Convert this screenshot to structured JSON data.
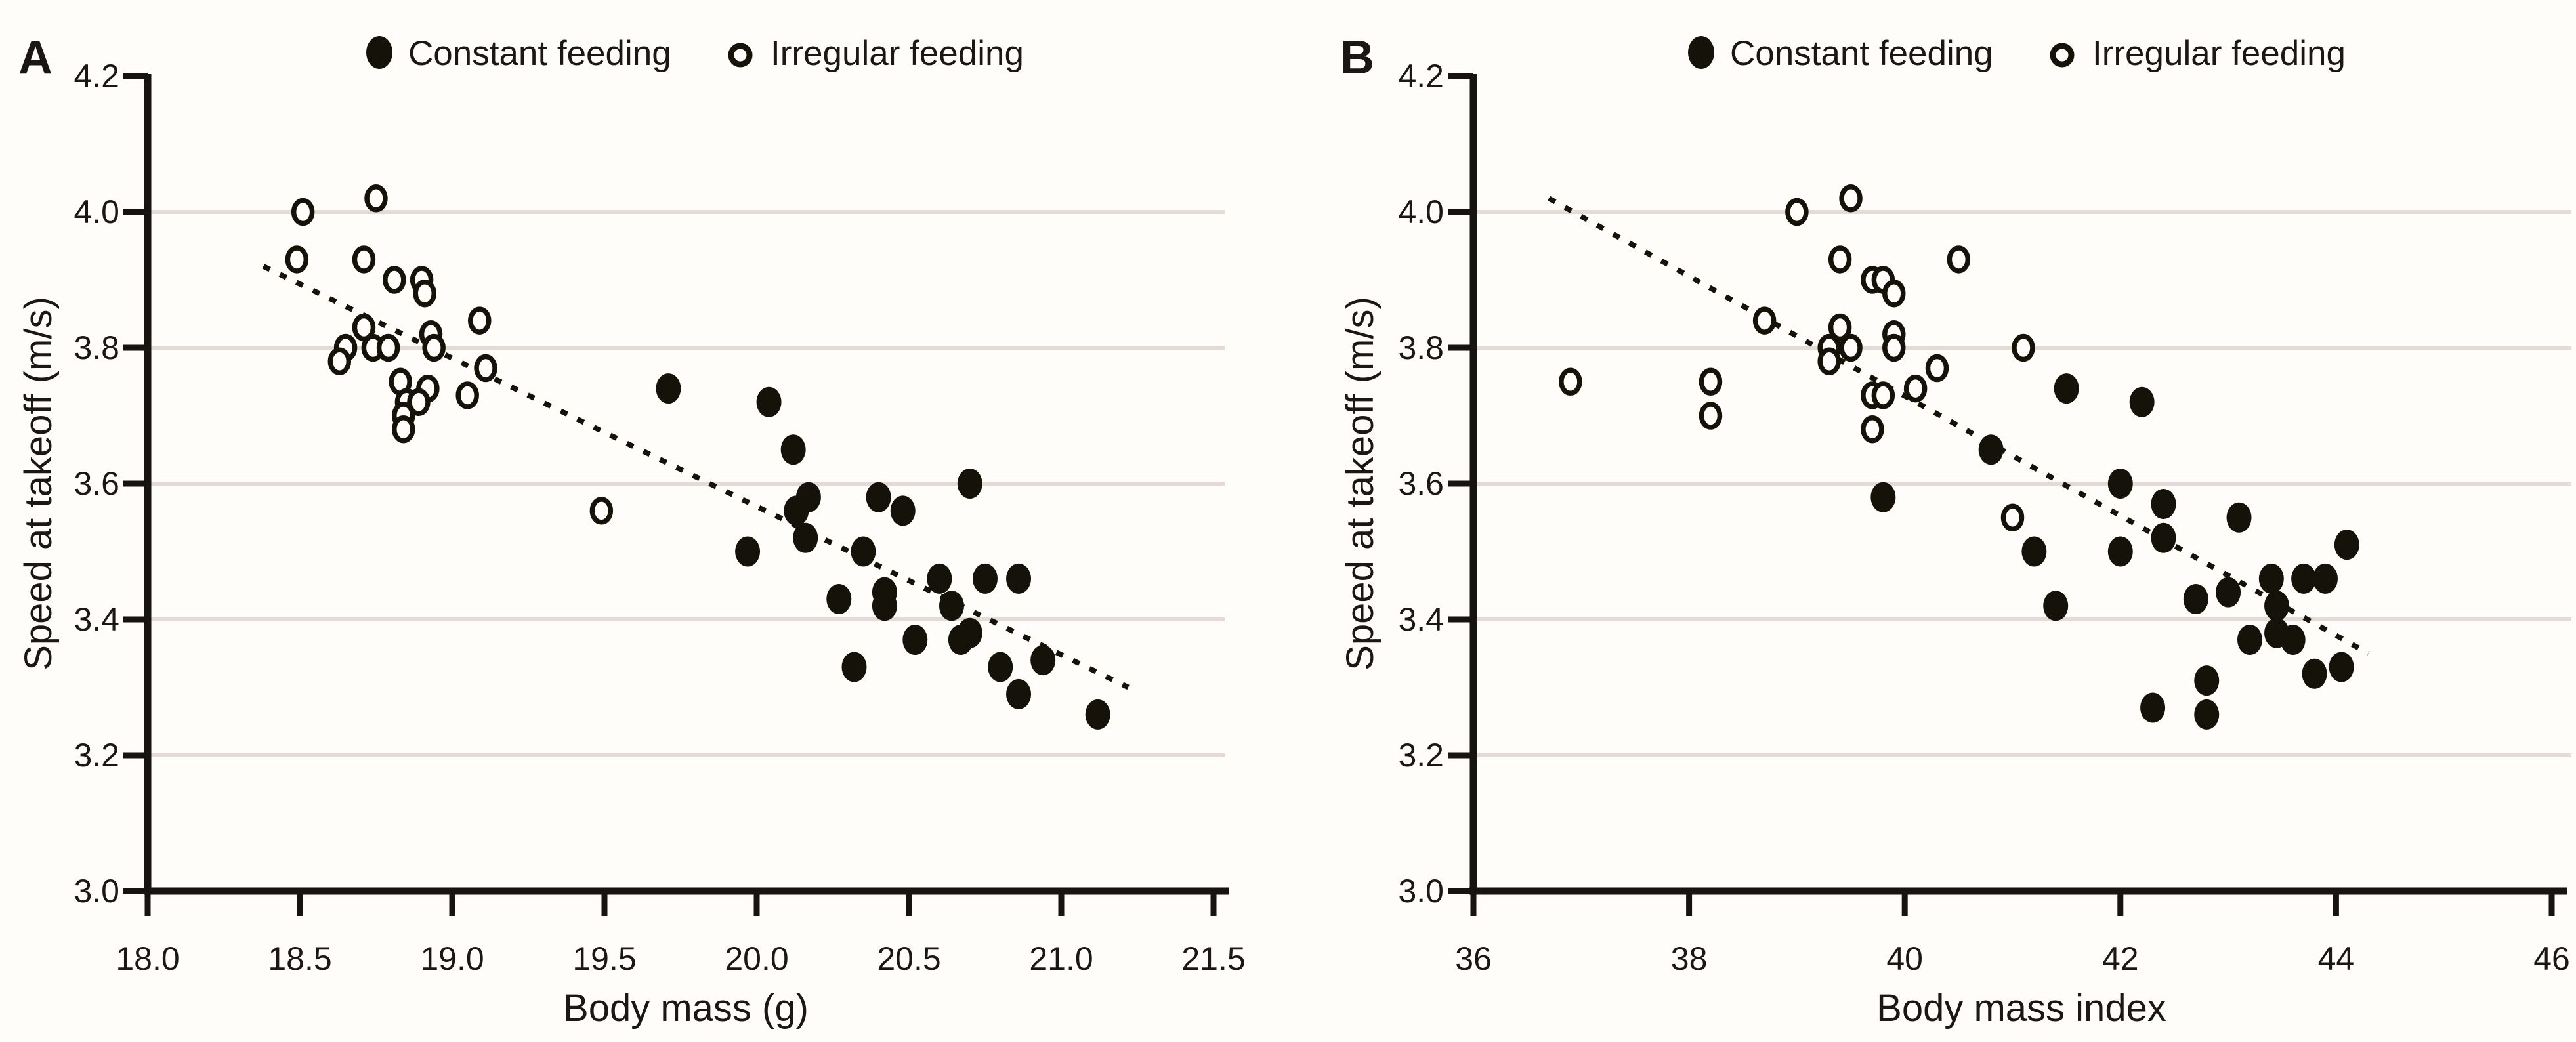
{
  "figure": {
    "background": "#fffdf9",
    "grid_color": "#e5dbd6",
    "axis_color": "#161310",
    "marker_color": "#151209",
    "text_color": "#1a1714"
  },
  "chart_data": [
    {
      "type": "scatter",
      "panel_label": "A",
      "xlabel": "Body mass (g)",
      "ylabel": "Speed at takeoff (m/s)",
      "xlim": [
        18.0,
        21.5
      ],
      "ylim": [
        3.0,
        4.2
      ],
      "x_ticks": [
        18.0,
        18.5,
        19.0,
        19.5,
        20.0,
        20.5,
        21.0,
        21.5
      ],
      "x_tick_labels": [
        "18.0",
        "18.5",
        "19.0",
        "19.5",
        "20.0",
        "20.5",
        "21.0",
        "21.5"
      ],
      "y_ticks": [
        3.0,
        3.2,
        3.4,
        3.6,
        3.8,
        4.0,
        4.2
      ],
      "y_tick_labels": [
        "3.0",
        "3.2",
        "3.4",
        "3.6",
        "3.8",
        "4.0",
        "4.2"
      ],
      "gridline_values": [
        3.2,
        3.4,
        3.6,
        3.8,
        4.0
      ],
      "grid": "horizontal",
      "legend_position": "top",
      "legend": [
        "Constant feeding",
        "Irregular feeding"
      ],
      "trend": {
        "style": "dotted",
        "from": [
          18.38,
          3.92
        ],
        "to": [
          21.22,
          3.3
        ]
      },
      "series": [
        {
          "name": "Constant feeding",
          "marker": "filled-circle",
          "points": [
            [
              19.71,
              3.74
            ],
            [
              20.04,
              3.72
            ],
            [
              20.12,
              3.65
            ],
            [
              20.7,
              3.6
            ],
            [
              20.4,
              3.58
            ],
            [
              20.17,
              3.58
            ],
            [
              20.13,
              3.56
            ],
            [
              20.48,
              3.56
            ],
            [
              20.16,
              3.52
            ],
            [
              19.97,
              3.5
            ],
            [
              20.35,
              3.5
            ],
            [
              20.6,
              3.46
            ],
            [
              20.75,
              3.46
            ],
            [
              20.86,
              3.46
            ],
            [
              20.42,
              3.44
            ],
            [
              20.27,
              3.43
            ],
            [
              20.42,
              3.42
            ],
            [
              20.64,
              3.42
            ],
            [
              20.7,
              3.38
            ],
            [
              20.67,
              3.37
            ],
            [
              20.52,
              3.37
            ],
            [
              20.94,
              3.34
            ],
            [
              20.32,
              3.33
            ],
            [
              20.8,
              3.33
            ],
            [
              20.86,
              3.29
            ],
            [
              21.12,
              3.26
            ]
          ]
        },
        {
          "name": "Irregular feeding",
          "marker": "open-circle",
          "points": [
            [
              18.51,
              4.0
            ],
            [
              18.75,
              4.02
            ],
            [
              18.49,
              3.93
            ],
            [
              18.71,
              3.93
            ],
            [
              18.81,
              3.9
            ],
            [
              18.9,
              3.9
            ],
            [
              18.91,
              3.88
            ],
            [
              19.09,
              3.84
            ],
            [
              18.71,
              3.83
            ],
            [
              18.93,
              3.82
            ],
            [
              18.94,
              3.8
            ],
            [
              18.65,
              3.8
            ],
            [
              18.74,
              3.8
            ],
            [
              18.79,
              3.8
            ],
            [
              18.63,
              3.78
            ],
            [
              19.11,
              3.77
            ],
            [
              18.83,
              3.75
            ],
            [
              18.92,
              3.74
            ],
            [
              19.05,
              3.73
            ],
            [
              18.85,
              3.72
            ],
            [
              18.89,
              3.72
            ],
            [
              18.84,
              3.7
            ],
            [
              18.84,
              3.68
            ],
            [
              19.49,
              3.56
            ]
          ]
        }
      ]
    },
    {
      "type": "scatter",
      "panel_label": "B",
      "xlabel": "Body mass index",
      "ylabel": "Speed at takeoff (m/s)",
      "xlim": [
        36,
        46
      ],
      "ylim": [
        3.0,
        4.2
      ],
      "x_ticks": [
        36,
        38,
        40,
        42,
        44,
        46
      ],
      "x_tick_labels": [
        "36",
        "38",
        "40",
        "42",
        "44",
        "46"
      ],
      "y_ticks": [
        3.0,
        3.2,
        3.4,
        3.6,
        3.8,
        4.0,
        4.2
      ],
      "y_tick_labels": [
        "3.0",
        "3.2",
        "3.4",
        "3.6",
        "3.8",
        "4.0",
        "4.2"
      ],
      "gridline_values": [
        3.2,
        3.4,
        3.6,
        3.8,
        4.0
      ],
      "grid": "horizontal",
      "legend_position": "top",
      "legend": [
        "Constant feeding",
        "Irregular feeding"
      ],
      "trend": {
        "style": "dotted",
        "from": [
          36.7,
          4.02
        ],
        "to": [
          44.3,
          3.35
        ]
      },
      "series": [
        {
          "name": "Constant feeding",
          "marker": "filled-circle",
          "points": [
            [
              41.5,
              3.74
            ],
            [
              42.2,
              3.72
            ],
            [
              40.8,
              3.65
            ],
            [
              42.0,
              3.6
            ],
            [
              39.8,
              3.58
            ],
            [
              42.4,
              3.57
            ],
            [
              43.1,
              3.55
            ],
            [
              42.4,
              3.52
            ],
            [
              44.1,
              3.51
            ],
            [
              41.2,
              3.5
            ],
            [
              42.0,
              3.5
            ],
            [
              43.4,
              3.46
            ],
            [
              43.7,
              3.46
            ],
            [
              43.9,
              3.46
            ],
            [
              43.0,
              3.44
            ],
            [
              42.7,
              3.43
            ],
            [
              41.4,
              3.42
            ],
            [
              43.45,
              3.42
            ],
            [
              43.45,
              3.38
            ],
            [
              43.6,
              3.37
            ],
            [
              43.2,
              3.37
            ],
            [
              44.05,
              3.33
            ],
            [
              43.8,
              3.32
            ],
            [
              42.8,
              3.31
            ],
            [
              42.3,
              3.27
            ],
            [
              42.8,
              3.26
            ]
          ]
        },
        {
          "name": "Irregular feeding",
          "marker": "open-circle",
          "points": [
            [
              39.5,
              4.02
            ],
            [
              39.0,
              4.0
            ],
            [
              39.4,
              3.93
            ],
            [
              40.5,
              3.93
            ],
            [
              39.7,
              3.9
            ],
            [
              39.8,
              3.9
            ],
            [
              39.9,
              3.88
            ],
            [
              38.7,
              3.84
            ],
            [
              39.4,
              3.83
            ],
            [
              39.9,
              3.82
            ],
            [
              39.9,
              3.8
            ],
            [
              39.3,
              3.8
            ],
            [
              39.5,
              3.8
            ],
            [
              41.1,
              3.8
            ],
            [
              39.3,
              3.78
            ],
            [
              40.3,
              3.77
            ],
            [
              40.1,
              3.74
            ],
            [
              36.9,
              3.75
            ],
            [
              38.2,
              3.75
            ],
            [
              39.7,
              3.73
            ],
            [
              39.8,
              3.73
            ],
            [
              38.2,
              3.7
            ],
            [
              39.7,
              3.68
            ],
            [
              41.0,
              3.55
            ]
          ]
        }
      ]
    }
  ]
}
